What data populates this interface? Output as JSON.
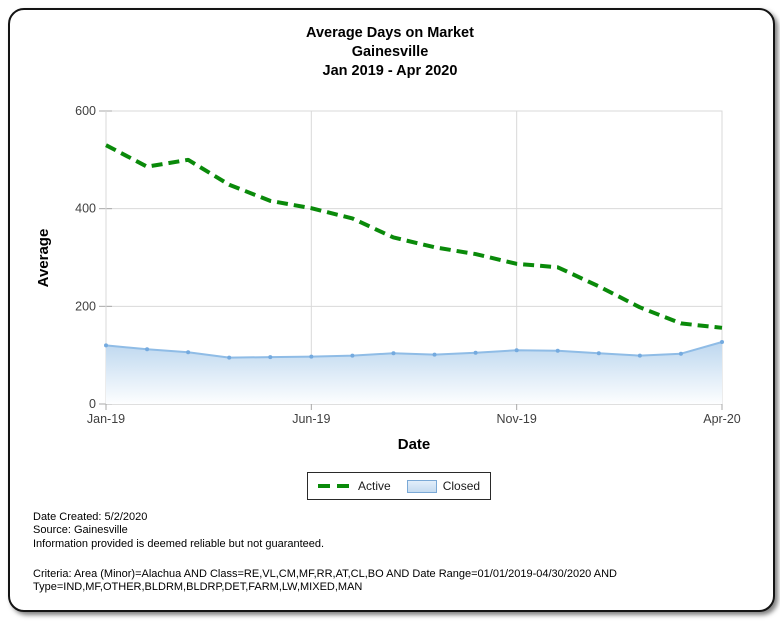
{
  "header": {
    "title_lines": [
      "Average Days on Market",
      "Gainesville",
      "Jan 2019 - Apr 2020"
    ]
  },
  "chart_data": {
    "type": "line",
    "title": "Average Days on Market Gainesville Jan 2019 - Apr 2020",
    "xlabel": "Date",
    "ylabel": "Average",
    "ylim": [
      0,
      600
    ],
    "yticks": [
      0,
      200,
      400,
      600
    ],
    "grid": true,
    "legend_position": "bottom-center",
    "x": [
      "Jan-19",
      "Feb-19",
      "Mar-19",
      "Apr-19",
      "May-19",
      "Jun-19",
      "Jul-19",
      "Aug-19",
      "Sep-19",
      "Oct-19",
      "Nov-19",
      "Dec-19",
      "Jan-20",
      "Feb-20",
      "Mar-20",
      "Apr-20"
    ],
    "xtick_indices": [
      0,
      5,
      10,
      15
    ],
    "xtick_labels": [
      "Jan-19",
      "Jun-19",
      "Nov-19",
      "Apr-20"
    ],
    "series": [
      {
        "name": "Active",
        "type": "line",
        "style": "dashed",
        "color": "#0a8a0a",
        "values": [
          530,
          486,
          500,
          449,
          416,
          401,
          380,
          341,
          321,
          307,
          287,
          280,
          241,
          198,
          165,
          156
        ]
      },
      {
        "name": "Closed",
        "type": "area",
        "style": "solid",
        "color": "#8fbce6",
        "marker_color": "#74aadf",
        "fill_top": "#bdd7ef",
        "fill_bottom": "#fdfeff",
        "values": [
          120,
          112,
          106,
          95,
          96,
          97,
          99,
          104,
          101,
          105,
          110,
          109,
          104,
          99,
          103,
          127
        ]
      }
    ],
    "colors": {
      "grid": "#d9d9d9",
      "axis": "#bfbfbf",
      "tick": "#a8a8a8",
      "tick_text": "#404040",
      "axis_title_text": "#000000"
    }
  },
  "footer": {
    "lines": [
      "Date Created: 5/2/2020",
      "Source: Gainesville",
      "Information provided is deemed reliable but not guaranteed."
    ]
  },
  "criteria": {
    "lines": [
      "Criteria: Area (Minor)=Alachua AND Class=RE,VL,CM,MF,RR,AT,CL,BO AND Date Range=01/01/2019-04/30/2020 AND",
      "Type=IND,MF,OTHER,BLDRM,BLDRP,DET,FARM,LW,MIXED,MAN"
    ]
  }
}
